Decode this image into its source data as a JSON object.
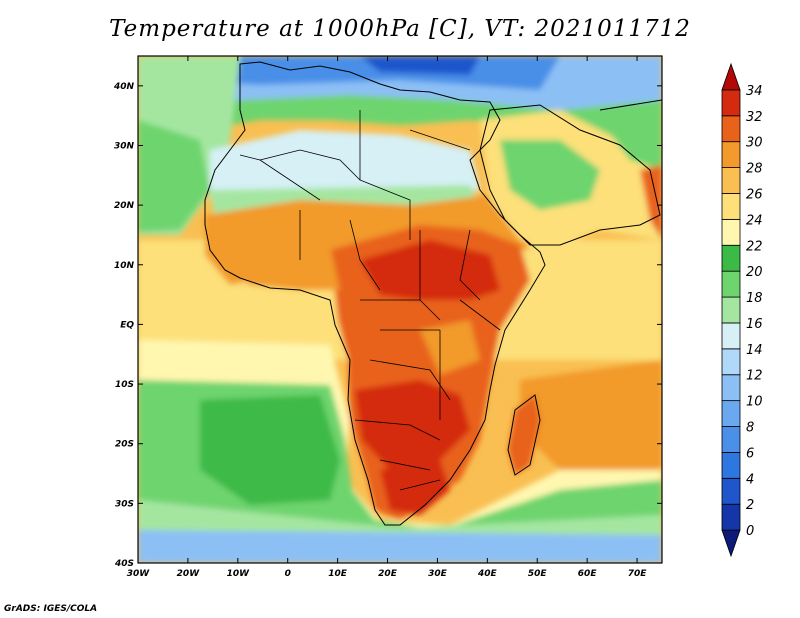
{
  "title": "Temperature at 1000hPa [C], VT: 2021011712",
  "credit": "GrADS: IGES/COLA",
  "map": {
    "lon_range": [
      -30,
      75
    ],
    "lat_range": [
      -40,
      45
    ],
    "lon_ticks": [
      {
        "v": -30,
        "label": "30W"
      },
      {
        "v": -20,
        "label": "20W"
      },
      {
        "v": -10,
        "label": "10W"
      },
      {
        "v": 0,
        "label": "0"
      },
      {
        "v": 10,
        "label": "10E"
      },
      {
        "v": 20,
        "label": "20E"
      },
      {
        "v": 30,
        "label": "30E"
      },
      {
        "v": 40,
        "label": "40E"
      },
      {
        "v": 50,
        "label": "50E"
      },
      {
        "v": 60,
        "label": "60E"
      },
      {
        "v": 70,
        "label": "70E"
      }
    ],
    "lat_ticks": [
      {
        "v": 40,
        "label": "40N"
      },
      {
        "v": 30,
        "label": "30N"
      },
      {
        "v": 20,
        "label": "20N"
      },
      {
        "v": 10,
        "label": "10N"
      },
      {
        "v": 0,
        "label": "EQ"
      },
      {
        "v": -10,
        "label": "10S"
      },
      {
        "v": -20,
        "label": "20S"
      },
      {
        "v": -30,
        "label": "30S"
      },
      {
        "v": -40,
        "label": "40S"
      }
    ]
  },
  "colorbar": {
    "levels": [
      0,
      2,
      4,
      6,
      8,
      10,
      12,
      14,
      16,
      18,
      20,
      22,
      24,
      26,
      28,
      30,
      32,
      34
    ],
    "colors": [
      "#0d1a7a",
      "#1536a8",
      "#1f56cc",
      "#2e76e0",
      "#4a8fe8",
      "#6aa8f0",
      "#8cc0f5",
      "#b0d8f8",
      "#d6f0f6",
      "#a4e6a0",
      "#6ed46e",
      "#3cba46",
      "#fff7b0",
      "#fde07a",
      "#f9bf52",
      "#f29a2c",
      "#e8621a",
      "#d42a10",
      "#b20808"
    ]
  }
}
